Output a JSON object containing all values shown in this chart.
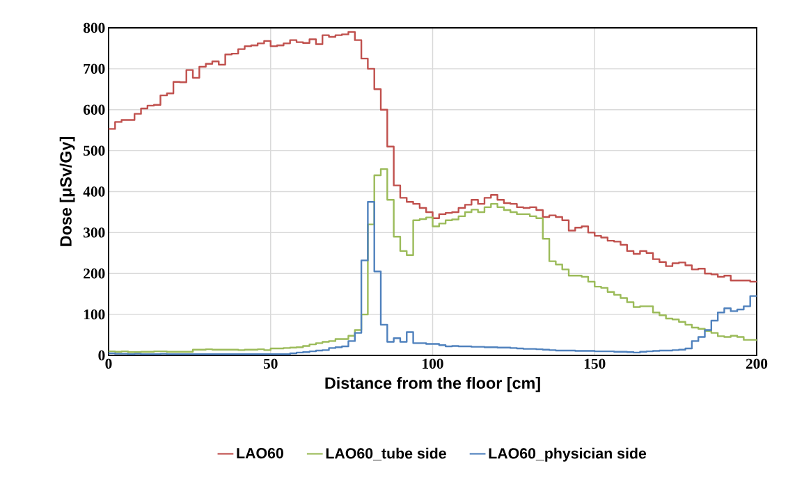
{
  "chart_data": {
    "type": "step",
    "xlabel": "Distance from the floor [cm]",
    "ylabel": "Dose [μSv/Gy]",
    "xlim": [
      0,
      200
    ],
    "xticks": [
      0,
      50,
      100,
      150,
      200
    ],
    "ylim": [
      0,
      800
    ],
    "yticks": [
      0,
      100,
      200,
      300,
      400,
      500,
      600,
      700,
      800
    ],
    "grid": true,
    "legend": "bottom",
    "x": [
      0,
      2,
      4,
      6,
      8,
      10,
      12,
      14,
      16,
      18,
      20,
      22,
      24,
      26,
      28,
      30,
      32,
      34,
      36,
      38,
      40,
      42,
      44,
      46,
      48,
      50,
      52,
      54,
      56,
      58,
      60,
      62,
      64,
      66,
      68,
      70,
      72,
      74,
      76,
      78,
      80,
      82,
      84,
      86,
      88,
      90,
      92,
      94,
      96,
      98,
      100,
      102,
      104,
      106,
      108,
      110,
      112,
      114,
      116,
      118,
      120,
      122,
      124,
      126,
      128,
      130,
      132,
      134,
      136,
      138,
      140,
      142,
      144,
      146,
      148,
      150,
      152,
      154,
      156,
      158,
      160,
      162,
      164,
      166,
      168,
      170,
      172,
      174,
      176,
      178,
      180,
      182,
      184,
      186,
      188,
      190,
      192,
      194,
      196,
      198,
      200
    ],
    "series": [
      {
        "name": "LAO60",
        "color": "#c0504d",
        "values": [
          553,
          570,
          575,
          575,
          590,
          603,
          610,
          612,
          635,
          640,
          668,
          667,
          697,
          678,
          705,
          712,
          718,
          710,
          735,
          737,
          748,
          755,
          757,
          762,
          768,
          755,
          757,
          762,
          770,
          765,
          763,
          772,
          760,
          782,
          778,
          782,
          784,
          790,
          770,
          725,
          700,
          650,
          600,
          510,
          415,
          385,
          375,
          370,
          360,
          350,
          335,
          345,
          348,
          350,
          360,
          368,
          380,
          370,
          385,
          392,
          380,
          372,
          370,
          362,
          360,
          362,
          355,
          338,
          342,
          338,
          330,
          305,
          312,
          315,
          300,
          292,
          288,
          280,
          278,
          270,
          255,
          248,
          255,
          250,
          235,
          228,
          218,
          225,
          227,
          220,
          210,
          212,
          200,
          198,
          192,
          195,
          183,
          183,
          183,
          180,
          180
        ]
      },
      {
        "name": "LAO60_tube side",
        "color": "#9bbb59",
        "values": [
          10,
          9,
          10,
          8,
          8,
          9,
          9,
          10,
          10,
          9,
          9,
          9,
          9,
          14,
          14,
          15,
          14,
          14,
          14,
          14,
          13,
          14,
          14,
          15,
          13,
          17,
          17,
          18,
          19,
          20,
          23,
          27,
          30,
          33,
          35,
          40,
          40,
          48,
          62,
          100,
          320,
          440,
          455,
          380,
          290,
          255,
          245,
          330,
          333,
          337,
          315,
          322,
          330,
          332,
          340,
          350,
          356,
          350,
          362,
          370,
          362,
          355,
          350,
          345,
          345,
          340,
          335,
          285,
          230,
          222,
          210,
          195,
          195,
          192,
          180,
          168,
          165,
          155,
          148,
          140,
          130,
          118,
          120,
          120,
          105,
          98,
          90,
          88,
          82,
          75,
          68,
          65,
          60,
          55,
          47,
          45,
          48,
          45,
          38,
          38,
          35
        ]
      },
      {
        "name": "LAO60_physician side",
        "color": "#4f81bd",
        "values": [
          5,
          4,
          4,
          3,
          4,
          3,
          3,
          3,
          4,
          3,
          3,
          3,
          3,
          3,
          3,
          3,
          3,
          3,
          3,
          3,
          3,
          3,
          3,
          3,
          3,
          3,
          3,
          3,
          5,
          7,
          8,
          10,
          12,
          13,
          18,
          20,
          22,
          35,
          55,
          232,
          375,
          205,
          75,
          33,
          42,
          33,
          57,
          30,
          30,
          28,
          28,
          25,
          22,
          23,
          22,
          22,
          21,
          21,
          20,
          20,
          19,
          19,
          18,
          17,
          16,
          16,
          15,
          14,
          13,
          12,
          12,
          12,
          11,
          11,
          11,
          10,
          10,
          10,
          9,
          9,
          8,
          7,
          9,
          10,
          11,
          12,
          12,
          13,
          14,
          17,
          35,
          45,
          62,
          85,
          105,
          115,
          108,
          112,
          120,
          145,
          145
        ]
      }
    ]
  }
}
